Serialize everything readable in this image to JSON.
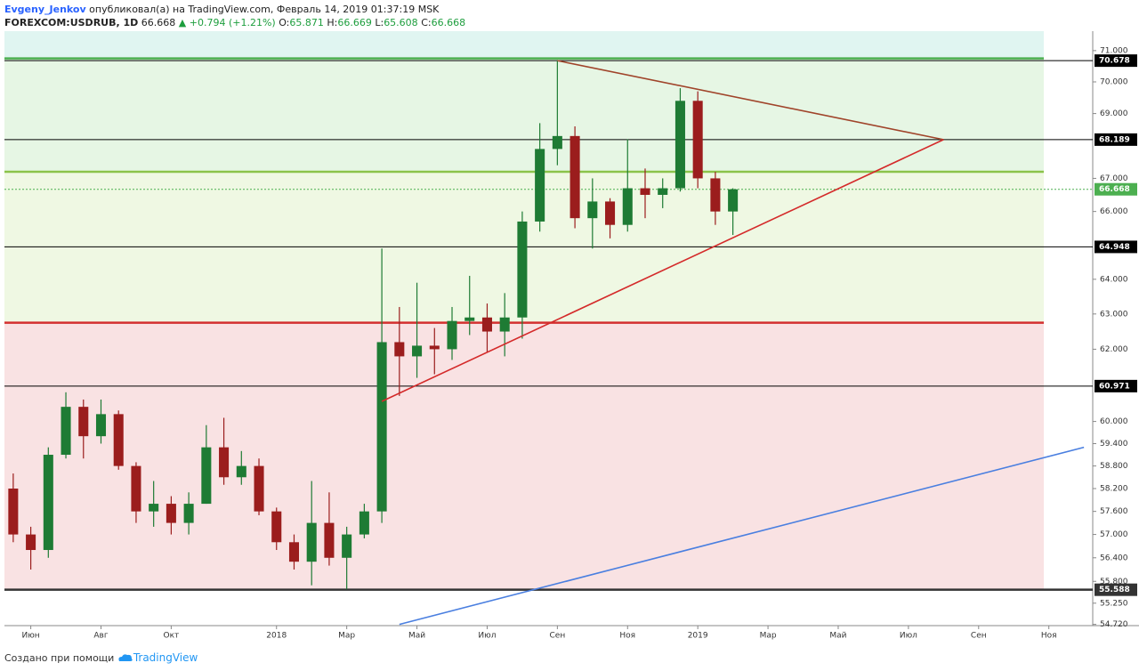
{
  "header": {
    "author": "Evgeny_Jenkov",
    "published": "опубликовал(а) на TradingView.com, Февраль 14, 2019 01:37:19 MSK",
    "symbol": "FOREXCOM:USDRUB, 1D",
    "last": "66.668",
    "change": "▲ +0.794 (+1.21%)",
    "o_label": "O:",
    "o": "65.871",
    "h_label": "H:",
    "h": "66.669",
    "l_label": "L:",
    "l": "65.608",
    "c_label": "C:",
    "c": "66.668"
  },
  "footer": {
    "text": "Создано при помощи",
    "brand": "TradingView"
  },
  "chart_data": {
    "type": "candlestick",
    "log_scale": true,
    "ylim": [
      54.69,
      71.63
    ],
    "yticks": [
      {
        "value": 71,
        "label": "71.000"
      },
      {
        "value": 70,
        "label": "70.000"
      },
      {
        "value": 69,
        "label": "69.000"
      },
      {
        "value": 67,
        "label": "67.000"
      },
      {
        "value": 66,
        "label": "66.000"
      },
      {
        "value": 64,
        "label": "64.000"
      },
      {
        "value": 63,
        "label": "63.000"
      },
      {
        "value": 62,
        "label": "62.000"
      },
      {
        "value": 60,
        "label": "60.000"
      },
      {
        "value": 59.4,
        "label": "59.400"
      },
      {
        "value": 58.8,
        "label": "58.800"
      },
      {
        "value": 58.2,
        "label": "58.200"
      },
      {
        "value": 57.6,
        "label": "57.600"
      },
      {
        "value": 57,
        "label": "57.000"
      },
      {
        "value": 56.4,
        "label": "56.400"
      },
      {
        "value": 55.8,
        "label": "55.800"
      },
      {
        "value": 55.25,
        "label": "55.250"
      },
      {
        "value": 54.72,
        "label": "54.720"
      }
    ],
    "categories": [
      null,
      "Июн",
      null,
      null,
      null,
      "Авг",
      null,
      null,
      null,
      "Окт",
      null,
      null,
      null,
      null,
      null,
      "2018",
      null,
      null,
      null,
      "Мар",
      null,
      null,
      null,
      "Май",
      null,
      null,
      null,
      "Июл",
      null,
      null,
      null,
      "Сен",
      null,
      null,
      null,
      "Ноя",
      null,
      null,
      null,
      "2019",
      null,
      null,
      null,
      "Мар",
      null,
      null,
      null,
      "Май",
      null,
      null,
      null,
      "Июл",
      null,
      null,
      null,
      "Сен",
      null,
      null,
      null,
      "Ноя",
      null,
      null
    ],
    "up_color": "#1e7b34",
    "down_color": "#9b1d1d",
    "open": [
      58.2,
      57.0,
      56.6,
      59.1,
      60.4,
      59.6,
      60.2,
      58.8,
      57.6,
      57.8,
      57.3,
      57.8,
      59.3,
      58.5,
      58.8,
      57.6,
      56.8,
      56.3,
      57.3,
      56.4,
      57.0,
      57.6,
      62.2,
      61.8,
      62.1,
      62.0,
      62.8,
      62.9,
      62.5,
      62.9,
      65.7,
      67.9,
      68.3,
      65.8,
      66.3,
      65.6,
      66.7,
      66.5,
      66.7,
      69.4,
      67.0,
      66.0,
      null,
      null,
      null,
      null,
      null,
      null,
      null,
      null,
      null,
      null,
      null,
      null,
      null,
      null,
      null,
      null,
      null,
      null,
      null,
      null
    ],
    "high": [
      58.6,
      57.2,
      59.3,
      60.8,
      60.6,
      60.6,
      60.3,
      58.9,
      58.4,
      58.0,
      58.1,
      59.9,
      60.1,
      59.2,
      59.0,
      57.7,
      57.0,
      58.4,
      58.1,
      57.2,
      57.8,
      64.9,
      63.2,
      63.9,
      62.6,
      63.2,
      64.1,
      63.3,
      63.6,
      66.0,
      68.7,
      70.7,
      68.6,
      67.0,
      66.4,
      68.2,
      67.3,
      67.0,
      69.8,
      69.7,
      67.2,
      66.7,
      null,
      null,
      null,
      null,
      null,
      null,
      null,
      null,
      null,
      null,
      null,
      null,
      null,
      null,
      null,
      null,
      null,
      null,
      null,
      null
    ],
    "low": [
      56.8,
      56.1,
      56.4,
      59.0,
      59.0,
      59.4,
      58.7,
      57.3,
      57.2,
      57.0,
      57.0,
      57.8,
      58.3,
      58.3,
      57.5,
      56.6,
      56.1,
      55.7,
      56.2,
      55.6,
      56.9,
      57.3,
      60.7,
      61.2,
      61.3,
      61.7,
      62.4,
      61.9,
      61.8,
      62.3,
      65.4,
      67.4,
      65.5,
      64.9,
      65.2,
      65.4,
      65.8,
      66.1,
      66.6,
      66.7,
      65.6,
      65.3,
      null,
      null,
      null,
      null,
      null,
      null,
      null,
      null,
      null,
      null,
      null,
      null,
      null,
      null,
      null,
      null,
      null,
      null,
      null,
      null
    ],
    "close": [
      57.0,
      56.6,
      59.1,
      60.4,
      59.6,
      60.2,
      58.8,
      57.6,
      57.8,
      57.3,
      57.8,
      59.3,
      58.5,
      58.8,
      57.6,
      56.8,
      56.3,
      57.3,
      56.4,
      57.0,
      57.6,
      62.2,
      61.8,
      62.1,
      62.0,
      62.8,
      62.9,
      62.5,
      62.9,
      65.7,
      67.9,
      68.3,
      65.8,
      66.3,
      65.6,
      66.7,
      66.5,
      66.7,
      69.4,
      67.0,
      66.0,
      66.668,
      null,
      null,
      null,
      null,
      null,
      null,
      null,
      null,
      null,
      null,
      null,
      null,
      null,
      null,
      null,
      null,
      null,
      null,
      null,
      null
    ],
    "zones": [
      {
        "from": 71.63,
        "to": 70.75,
        "color": "#e0f5f1"
      },
      {
        "from": 70.75,
        "to": 67.2,
        "color": "#e6f6e4"
      },
      {
        "from": 67.2,
        "to": 62.75,
        "color": "#eff8e3"
      },
      {
        "from": 62.75,
        "to": 55.588,
        "color": "#f9e2e3"
      }
    ],
    "hlines": [
      {
        "value": 70.75,
        "color": "#4caf50",
        "style": "thick",
        "labeled": false
      },
      {
        "value": 70.678,
        "color": "#000000",
        "style": "thin",
        "labeled": true
      },
      {
        "value": 68.189,
        "color": "#000000",
        "style": "thin",
        "labeled": true
      },
      {
        "value": 67.2,
        "color": "#8bc34a",
        "style": "thick",
        "labeled": false
      },
      {
        "value": 66.668,
        "color": "#4caf50",
        "style": "dotted",
        "labeled": true
      },
      {
        "value": 64.948,
        "color": "#000000",
        "style": "thin",
        "labeled": true
      },
      {
        "value": 62.75,
        "color": "#d32f2f",
        "style": "thick",
        "labeled": false
      },
      {
        "value": 60.971,
        "color": "#000000",
        "style": "thin",
        "labeled": true
      },
      {
        "value": 55.588,
        "color": "#333333",
        "style": "thick",
        "labeled": true
      }
    ],
    "trendlines": [
      {
        "color": "#a0442a",
        "points": [
          [
            31,
            70.678
          ],
          [
            53,
            68.189
          ]
        ]
      },
      {
        "color": "#d42a2a",
        "points": [
          [
            21,
            60.55
          ],
          [
            53,
            68.189
          ]
        ]
      },
      {
        "color": "#4a7fe0",
        "points": [
          [
            22,
            54.72
          ],
          [
            61,
            59.3
          ]
        ]
      }
    ]
  }
}
